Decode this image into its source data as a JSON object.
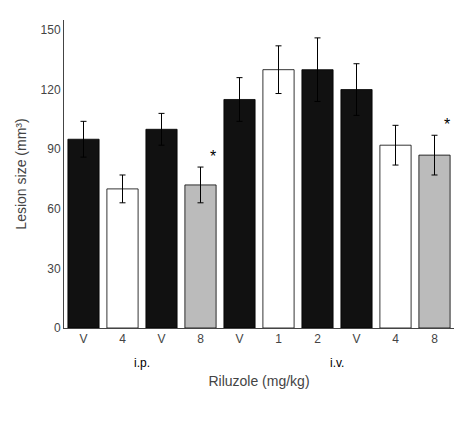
{
  "chart_data": {
    "type": "bar",
    "xlabel": "Riluzole (mg/kg)",
    "ylabel": "Lesion size (mm³)",
    "categories": [
      "V",
      "4",
      "V",
      "8",
      "V",
      "1",
      "2",
      "V",
      "4",
      "8"
    ],
    "values": [
      95,
      70,
      100,
      72,
      115,
      130,
      130,
      120,
      92,
      87
    ],
    "errors": [
      9,
      7,
      8,
      9,
      11,
      12,
      16,
      13,
      10,
      10
    ],
    "colors": [
      "#111111",
      "#ffffff",
      "#111111",
      "#bbbbbb",
      "#111111",
      "#ffffff",
      "#111111",
      "#111111",
      "#ffffff",
      "#bbbbbb"
    ],
    "ylim": [
      0,
      155
    ],
    "yticks": [
      0,
      30,
      60,
      90,
      120,
      150
    ],
    "grid": false,
    "annotations": [
      {
        "text": "*",
        "x": 3
      },
      {
        "text": "*",
        "x": 9
      },
      {
        "text": "i.p.",
        "x": [
          0,
          3
        ]
      },
      {
        "text": "i.v.",
        "x": [
          4,
          9
        ]
      }
    ]
  }
}
